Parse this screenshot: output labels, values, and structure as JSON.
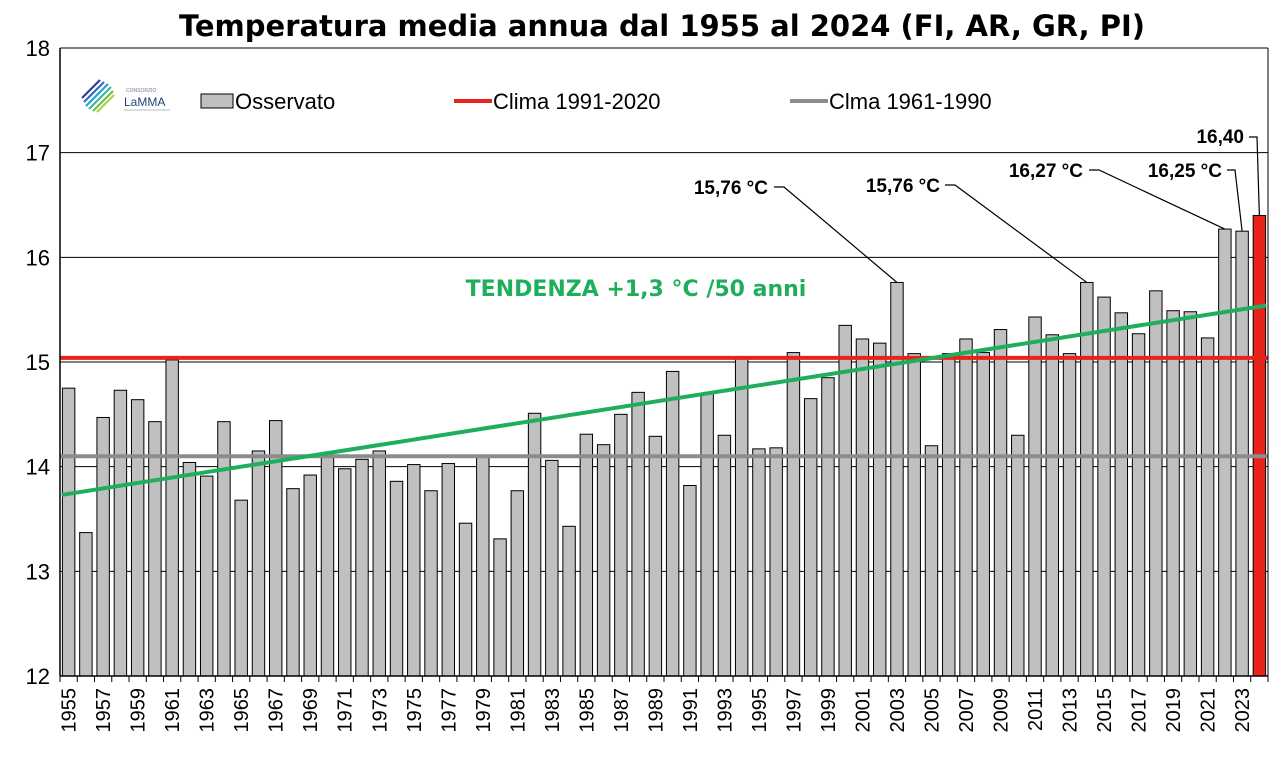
{
  "chart_data": {
    "type": "bar",
    "title": "Temperatura media annua dal 1955 al 2024 (FI, AR, GR, PI)",
    "xlabel": "",
    "ylabel": "",
    "ylim": [
      12,
      18
    ],
    "yticks": [
      "12",
      "13",
      "14",
      "15",
      "16",
      "17",
      "18"
    ],
    "grid": true,
    "legend_position": "top",
    "categories": [
      1955,
      1956,
      1957,
      1958,
      1959,
      1960,
      1961,
      1962,
      1963,
      1964,
      1965,
      1966,
      1967,
      1968,
      1969,
      1970,
      1971,
      1972,
      1973,
      1974,
      1975,
      1976,
      1977,
      1978,
      1979,
      1980,
      1981,
      1982,
      1983,
      1984,
      1985,
      1986,
      1987,
      1988,
      1989,
      1990,
      1991,
      1992,
      1993,
      1994,
      1995,
      1996,
      1997,
      1998,
      1999,
      2000,
      2001,
      2002,
      2003,
      2004,
      2005,
      2006,
      2007,
      2008,
      2009,
      2010,
      2011,
      2012,
      2013,
      2014,
      2015,
      2016,
      2017,
      2018,
      2019,
      2020,
      2021,
      2022,
      2023,
      2024
    ],
    "xtick_labels": [
      "1955",
      "1957",
      "1959",
      "1961",
      "1963",
      "1965",
      "1967",
      "1969",
      "1971",
      "1973",
      "1975",
      "1977",
      "1979",
      "1981",
      "1983",
      "1985",
      "1987",
      "1989",
      "1991",
      "1993",
      "1995",
      "1997",
      "1999",
      "2001",
      "2003",
      "2005",
      "2007",
      "2009",
      "2011",
      "2013",
      "2015",
      "2017",
      "2019",
      "2021",
      "2023"
    ],
    "series": [
      {
        "name": "Osservato",
        "type": "bar",
        "color": "#c0c0c0",
        "highlight": {
          "year": 2024,
          "color": "#e8231c"
        },
        "values": [
          14.75,
          13.37,
          14.47,
          14.73,
          14.64,
          14.43,
          15.02,
          14.04,
          13.91,
          14.43,
          13.68,
          14.15,
          14.44,
          13.79,
          13.92,
          14.1,
          13.98,
          14.07,
          14.15,
          13.86,
          14.02,
          13.77,
          14.03,
          13.46,
          14.1,
          13.31,
          13.77,
          14.51,
          14.06,
          13.43,
          14.31,
          14.21,
          14.5,
          14.71,
          14.29,
          14.91,
          13.82,
          14.7,
          14.3,
          15.05,
          14.17,
          14.18,
          15.09,
          14.65,
          14.85,
          15.35,
          15.22,
          15.18,
          15.76,
          15.08,
          14.2,
          15.08,
          15.22,
          15.09,
          15.31,
          14.3,
          15.43,
          15.26,
          15.08,
          15.76,
          15.62,
          15.47,
          15.27,
          15.68,
          15.49,
          15.48,
          15.23,
          16.27,
          16.25,
          16.4
        ]
      },
      {
        "name": "Clima 1991-2020",
        "type": "hline",
        "value": 15.04,
        "color": "#e8231c"
      },
      {
        "name": "Clma 1961-1990",
        "type": "hline",
        "value": 14.1,
        "color": "#8c8c8c"
      },
      {
        "name": "TENDENZA +1,3 °C /50 anni",
        "type": "trend",
        "x": [
          1955,
          2024
        ],
        "values": [
          13.73,
          15.54
        ],
        "color": "#1fae5c"
      }
    ],
    "annotations": [
      {
        "text": "15,76 °C",
        "year": 2003,
        "value": 15.76
      },
      {
        "text": "15,76 °C",
        "year": 2014,
        "value": 15.76
      },
      {
        "text": "16,27 °C",
        "year": 2022,
        "value": 16.27
      },
      {
        "text": "16,25 °C",
        "year": 2023,
        "value": 16.25
      },
      {
        "text": "16,40",
        "year": 2024,
        "value": 16.4
      }
    ],
    "legend": [
      {
        "label": "Osservato",
        "marker": "box",
        "color": "#c0c0c0"
      },
      {
        "label": "Clima 1991-2020",
        "marker": "line",
        "color": "#e8231c"
      },
      {
        "label": "Clma 1961-1990",
        "marker": "line",
        "color": "#8c8c8c"
      }
    ],
    "trend_label": "TENDENZA +1,3 °C /50 anni"
  },
  "logo": {
    "name": "lamma-logo",
    "top_text": "CONSORZIO",
    "text": "LaMMA"
  }
}
